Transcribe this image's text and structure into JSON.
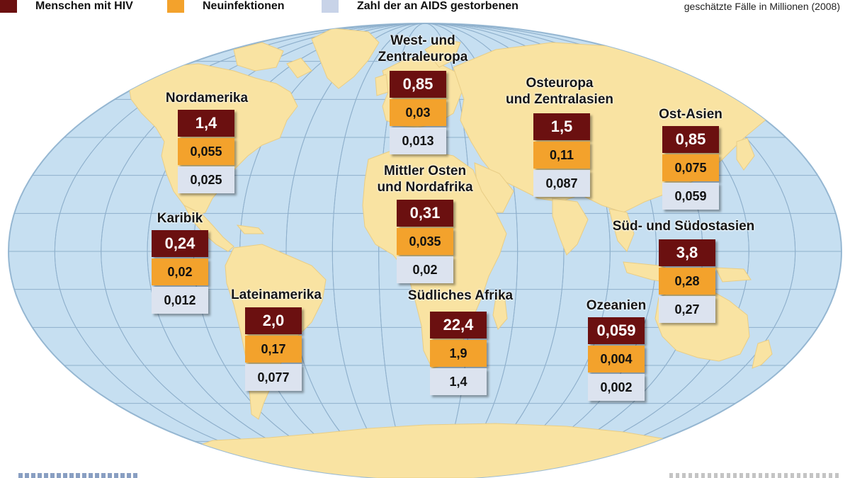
{
  "legend": {
    "items": [
      {
        "label": "Menschen mit HIV",
        "color": "#6b1010"
      },
      {
        "label": "Neuinfektionen",
        "color": "#f3a22c"
      },
      {
        "label": "Zahl der an AIDS gestorbenen",
        "color": "#c8d3e8"
      }
    ],
    "note": "geschätzte Fälle in Millionen (2008)"
  },
  "map": {
    "ocean_color": "#c6dff1",
    "land_color": "#f9e3a2",
    "graticule_color": "#8fb0cc"
  },
  "regions": [
    {
      "name_lines": [
        "Nordamerika"
      ],
      "hiv": "1,4",
      "new_infections": "0,055",
      "aids_deaths": "0,025"
    },
    {
      "name_lines": [
        "Karibik"
      ],
      "hiv": "0,24",
      "new_infections": "0,02",
      "aids_deaths": "0,012"
    },
    {
      "name_lines": [
        "Lateinamerika"
      ],
      "hiv": "2,0",
      "new_infections": "0,17",
      "aids_deaths": "0,077"
    },
    {
      "name_lines": [
        "West- und",
        "Zentraleuropa"
      ],
      "hiv": "0,85",
      "new_infections": "0,03",
      "aids_deaths": "0,013"
    },
    {
      "name_lines": [
        "Mittler Osten",
        "und Nordafrika"
      ],
      "hiv": "0,31",
      "new_infections": "0,035",
      "aids_deaths": "0,02"
    },
    {
      "name_lines": [
        "Südliches Afrika"
      ],
      "hiv": "22,4",
      "new_infections": "1,9",
      "aids_deaths": "1,4"
    },
    {
      "name_lines": [
        "Osteuropa",
        "und Zentralasien"
      ],
      "hiv": "1,5",
      "new_infections": "0,11",
      "aids_deaths": "0,087"
    },
    {
      "name_lines": [
        "Ost-Asien"
      ],
      "hiv": "0,85",
      "new_infections": "0,075",
      "aids_deaths": "0,059"
    },
    {
      "name_lines": [
        "Süd- und Südostasien"
      ],
      "hiv": "3,8",
      "new_infections": "0,28",
      "aids_deaths": "0,27"
    },
    {
      "name_lines": [
        "Ozeanien"
      ],
      "hiv": "0,059",
      "new_infections": "0,004",
      "aids_deaths": "0,002"
    }
  ]
}
